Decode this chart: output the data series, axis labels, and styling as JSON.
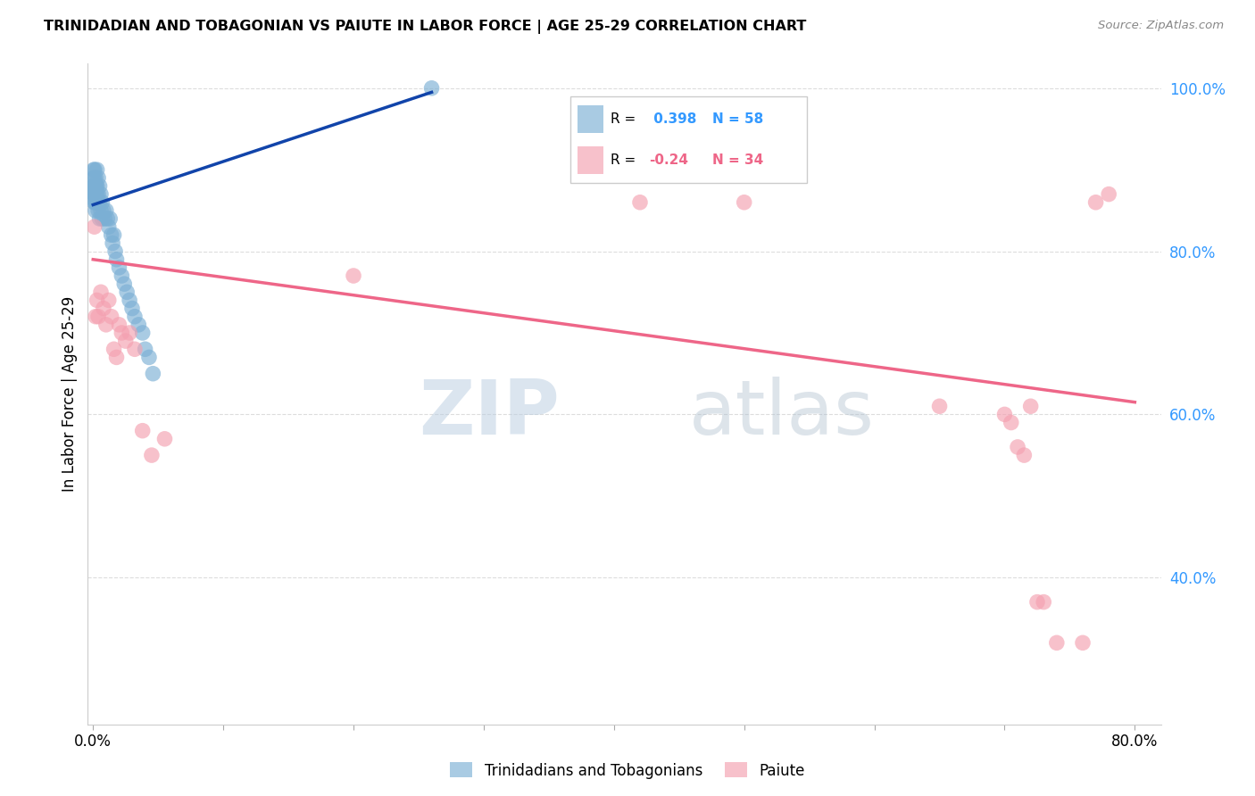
{
  "title": "TRINIDADIAN AND TOBAGONIAN VS PAIUTE IN LABOR FORCE | AGE 25-29 CORRELATION CHART",
  "source": "Source: ZipAtlas.com",
  "ylabel": "In Labor Force | Age 25-29",
  "r_blue": 0.398,
  "n_blue": 58,
  "r_pink": -0.24,
  "n_pink": 34,
  "blue_color": "#7BAFD4",
  "pink_color": "#F4A0B0",
  "blue_line_color": "#1144AA",
  "pink_line_color": "#EE6688",
  "legend_label_blue": "Trinidadians and Tobagonians",
  "legend_label_pink": "Paiute",
  "xlim": [
    -0.004,
    0.82
  ],
  "ylim": [
    0.22,
    1.03
  ],
  "right_yticks": [
    0.4,
    0.6,
    0.8,
    1.0
  ],
  "right_yticklabels": [
    "40.0%",
    "60.0%",
    "80.0%",
    "100.0%"
  ],
  "xticks": [
    0.0,
    0.1,
    0.2,
    0.3,
    0.4,
    0.5,
    0.6,
    0.7,
    0.8
  ],
  "xticklabels": [
    "0.0%",
    "",
    "",
    "",
    "",
    "",
    "",
    "",
    "80.0%"
  ],
  "blue_x": [
    0.0002,
    0.0003,
    0.0004,
    0.0005,
    0.0006,
    0.0007,
    0.0008,
    0.0009,
    0.001,
    0.001,
    0.0012,
    0.0013,
    0.0015,
    0.0016,
    0.0017,
    0.0018,
    0.002,
    0.002,
    0.0022,
    0.0025,
    0.003,
    0.003,
    0.003,
    0.003,
    0.004,
    0.004,
    0.004,
    0.005,
    0.005,
    0.005,
    0.006,
    0.006,
    0.007,
    0.007,
    0.008,
    0.009,
    0.01,
    0.011,
    0.012,
    0.013,
    0.014,
    0.015,
    0.016,
    0.017,
    0.018,
    0.02,
    0.022,
    0.024,
    0.026,
    0.028,
    0.03,
    0.032,
    0.035,
    0.038,
    0.04,
    0.043,
    0.046,
    0.26
  ],
  "blue_y": [
    0.88,
    0.87,
    0.89,
    0.9,
    0.88,
    0.87,
    0.86,
    0.89,
    0.88,
    0.87,
    0.9,
    0.88,
    0.87,
    0.86,
    0.88,
    0.85,
    0.89,
    0.87,
    0.86,
    0.88,
    0.9,
    0.88,
    0.87,
    0.86,
    0.89,
    0.87,
    0.85,
    0.88,
    0.86,
    0.84,
    0.87,
    0.85,
    0.86,
    0.84,
    0.85,
    0.84,
    0.85,
    0.84,
    0.83,
    0.84,
    0.82,
    0.81,
    0.82,
    0.8,
    0.79,
    0.78,
    0.77,
    0.76,
    0.75,
    0.74,
    0.73,
    0.72,
    0.71,
    0.7,
    0.68,
    0.67,
    0.65,
    1.0
  ],
  "pink_x": [
    0.001,
    0.002,
    0.003,
    0.004,
    0.006,
    0.008,
    0.01,
    0.012,
    0.014,
    0.016,
    0.018,
    0.02,
    0.022,
    0.025,
    0.028,
    0.032,
    0.038,
    0.045,
    0.055,
    0.2,
    0.42,
    0.5,
    0.65,
    0.7,
    0.72,
    0.74,
    0.76,
    0.77,
    0.78,
    0.73,
    0.71,
    0.705,
    0.715,
    0.725
  ],
  "pink_y": [
    0.83,
    0.72,
    0.74,
    0.72,
    0.75,
    0.73,
    0.71,
    0.74,
    0.72,
    0.68,
    0.67,
    0.71,
    0.7,
    0.69,
    0.7,
    0.68,
    0.58,
    0.55,
    0.57,
    0.77,
    0.86,
    0.86,
    0.61,
    0.6,
    0.61,
    0.32,
    0.32,
    0.86,
    0.87,
    0.37,
    0.56,
    0.59,
    0.55,
    0.37
  ],
  "blue_trendline_x": [
    0.0,
    0.26
  ],
  "blue_trendline_y": [
    0.857,
    0.995
  ],
  "pink_trendline_x": [
    0.0,
    0.8
  ],
  "pink_trendline_y": [
    0.79,
    0.615
  ]
}
